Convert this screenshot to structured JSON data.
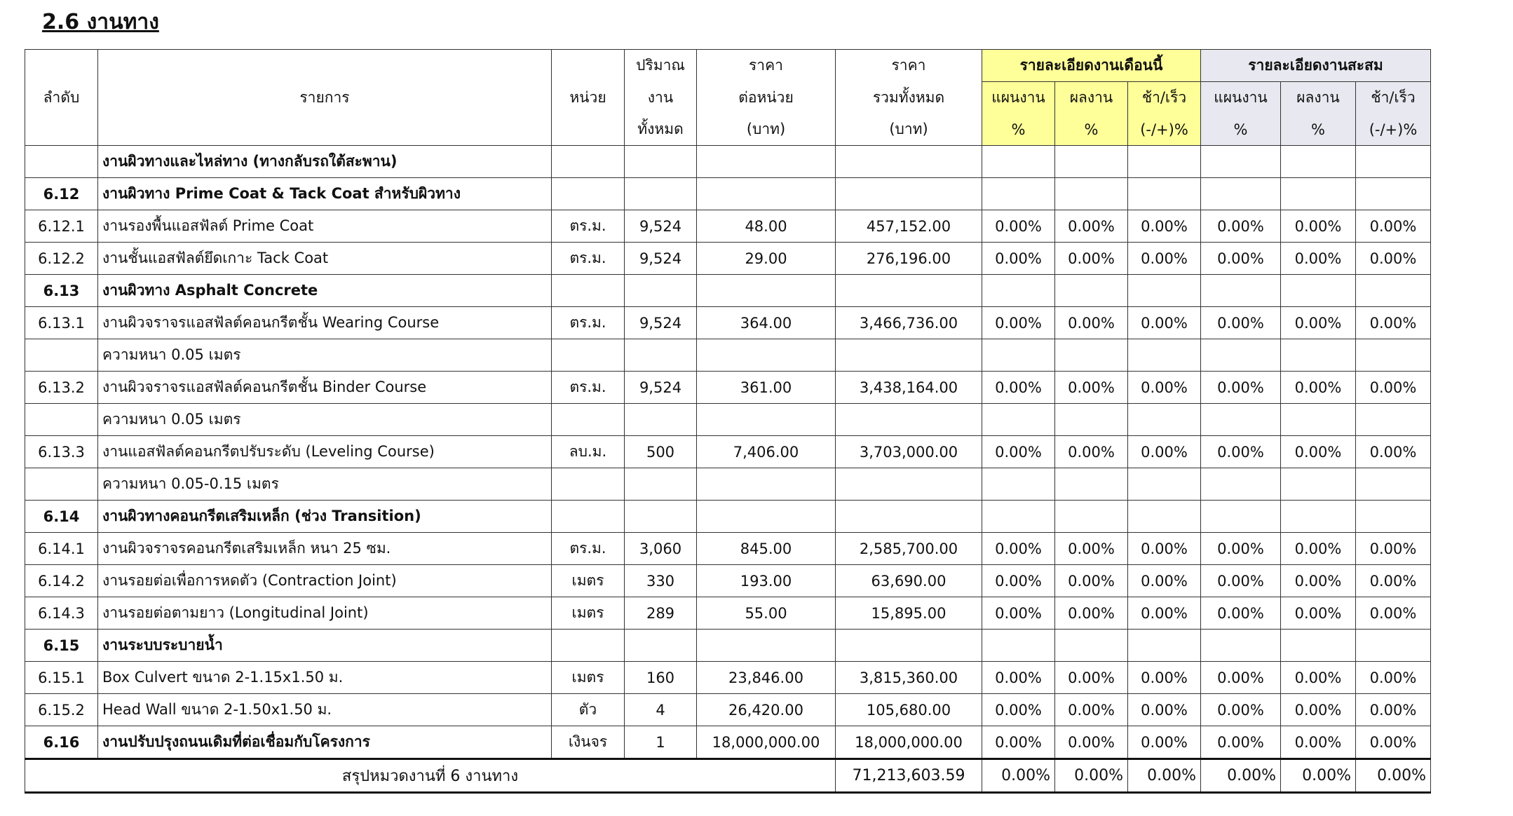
{
  "title": "2.6 งานทาง",
  "header": {
    "no": "ลำดับ",
    "item": "รายการ",
    "unit": "หน่วย",
    "qty": [
      "ปริมาณ",
      "งาน",
      "ทั้งหมด"
    ],
    "price": [
      "ราคา",
      "ต่อหน่วย",
      "(บาท)"
    ],
    "total": [
      "ราคา",
      "รวมทั้งหมด",
      "(บาท)"
    ],
    "groups": [
      {
        "title": "รายละเอียดงานเดือนนี้",
        "subs": [
          [
            "แผนงาน",
            "%"
          ],
          [
            "ผลงาน",
            "%"
          ],
          [
            "ช้า/เร็ว",
            "(-/+)%"
          ]
        ]
      },
      {
        "title": "รายละเอียดงานสะสม",
        "subs": [
          [
            "แผนงาน",
            "%"
          ],
          [
            "ผลงาน",
            "%"
          ],
          [
            "ช้า/เร็ว",
            "(-/+)%"
          ]
        ]
      }
    ]
  },
  "rows": [
    {
      "item": "งานผิวทางและไหล่ทาง (ทางกลับรถใต้สะพาน)"
    },
    {
      "no": "6.12",
      "item": "งานผิวทาง Prime Coat & Tack Coat สำหรับผิวทาง"
    },
    {
      "no": "6.12.1",
      "item": "งานรองพื้นแอสฟัลต์ Prime Coat",
      "unit": "ตร.ม.",
      "qty": "9,524",
      "price": "48.00",
      "total": "457,152.00",
      "pct": [
        "0.00%",
        "0.00%",
        "0.00%",
        "0.00%",
        "0.00%",
        "0.00%"
      ]
    },
    {
      "no": "6.12.2",
      "item": "งานชั้นแอสฟัลต์ยึดเกาะ Tack Coat",
      "unit": "ตร.ม.",
      "qty": "9,524",
      "price": "29.00",
      "total": "276,196.00",
      "pct": [
        "0.00%",
        "0.00%",
        "0.00%",
        "0.00%",
        "0.00%",
        "0.00%"
      ]
    },
    {
      "no": "6.13",
      "item": "งานผิวทาง Asphalt Concrete"
    },
    {
      "no": "6.13.1",
      "item": "งานผิวจราจรแอสฟัลต์คอนกรีตชั้น  Wearing Course",
      "unit": "ตร.ม.",
      "qty": "9,524",
      "price": "364.00",
      "total": "3,466,736.00",
      "pct": [
        "0.00%",
        "0.00%",
        "0.00%",
        "0.00%",
        "0.00%",
        "0.00%"
      ]
    },
    {
      "item": "ความหนา 0.05 เมตร"
    },
    {
      "no": "6.13.2",
      "item": "งานผิวจราจรแอสฟัลต์คอนกรีตชั้น  Binder Course",
      "unit": "ตร.ม.",
      "qty": "9,524",
      "price": "361.00",
      "total": "3,438,164.00",
      "pct": [
        "0.00%",
        "0.00%",
        "0.00%",
        "0.00%",
        "0.00%",
        "0.00%"
      ]
    },
    {
      "item": "ความหนา 0.05 เมตร"
    },
    {
      "no": "6.13.3",
      "item": "งานแอสฟัลต์คอนกรีตปรับระดับ (Leveling Course)",
      "unit": "ลบ.ม.",
      "qty": "500",
      "price": "7,406.00",
      "total": "3,703,000.00",
      "pct": [
        "0.00%",
        "0.00%",
        "0.00%",
        "0.00%",
        "0.00%",
        "0.00%"
      ]
    },
    {
      "item": "ความหนา 0.05-0.15 เมตร"
    },
    {
      "no": "6.14",
      "item": "งานผิวทางคอนกรีตเสริมเหล็ก (ช่วง Transition)"
    },
    {
      "no": "6.14.1",
      "item": "งานผิวจราจรคอนกรีตเสริมเหล็ก หนา 25 ซม.",
      "unit": "ตร.ม.",
      "qty": "3,060",
      "price": "845.00",
      "total": "2,585,700.00",
      "pct": [
        "0.00%",
        "0.00%",
        "0.00%",
        "0.00%",
        "0.00%",
        "0.00%"
      ]
    },
    {
      "no": "6.14.2",
      "item": "งานรอยต่อเพื่อการหดตัว (Contraction Joint)",
      "unit": "เมตร",
      "qty": "330",
      "price": "193.00",
      "total": "63,690.00",
      "pct": [
        "0.00%",
        "0.00%",
        "0.00%",
        "0.00%",
        "0.00%",
        "0.00%"
      ]
    },
    {
      "no": "6.14.3",
      "item": "งานรอยต่อตามยาว (Longitudinal Joint)",
      "unit": "เมตร",
      "qty": "289",
      "price": "55.00",
      "total": "15,895.00",
      "pct": [
        "0.00%",
        "0.00%",
        "0.00%",
        "0.00%",
        "0.00%",
        "0.00%"
      ]
    },
    {
      "no": "6.15",
      "item": "งานระบบระบายน้ำ"
    },
    {
      "no": "6.15.1",
      "item": "Box Culvert ขนาด 2-1.15x1.50 ม.",
      "unit": "เมตร",
      "qty": "160",
      "price": "23,846.00",
      "total": "3,815,360.00",
      "pct": [
        "0.00%",
        "0.00%",
        "0.00%",
        "0.00%",
        "0.00%",
        "0.00%"
      ]
    },
    {
      "no": "6.15.2",
      "item": "Head Wall ขนาด 2-1.50x1.50 ม.",
      "unit": "ตัว",
      "qty": "4",
      "price": "26,420.00",
      "total": "105,680.00",
      "pct": [
        "0.00%",
        "0.00%",
        "0.00%",
        "0.00%",
        "0.00%",
        "0.00%"
      ]
    },
    {
      "no": "6.16",
      "item": "งานปรับปรุงถนนเดิมที่ต่อเชื่อมกับโครงการ",
      "unit": "เงินจร",
      "qty": "1",
      "price": "18,000,000.00",
      "total": "18,000,000.00",
      "pct": [
        "0.00%",
        "0.00%",
        "0.00%",
        "0.00%",
        "0.00%",
        "0.00%"
      ]
    }
  ],
  "summary": {
    "label": "สรุปหมวดงานที่ 6 งานทาง",
    "total": "71,213,603.59",
    "pct": [
      "0.00%",
      "0.00%",
      "0.00%",
      "0.00%",
      "0.00%",
      "0.00%"
    ]
  }
}
